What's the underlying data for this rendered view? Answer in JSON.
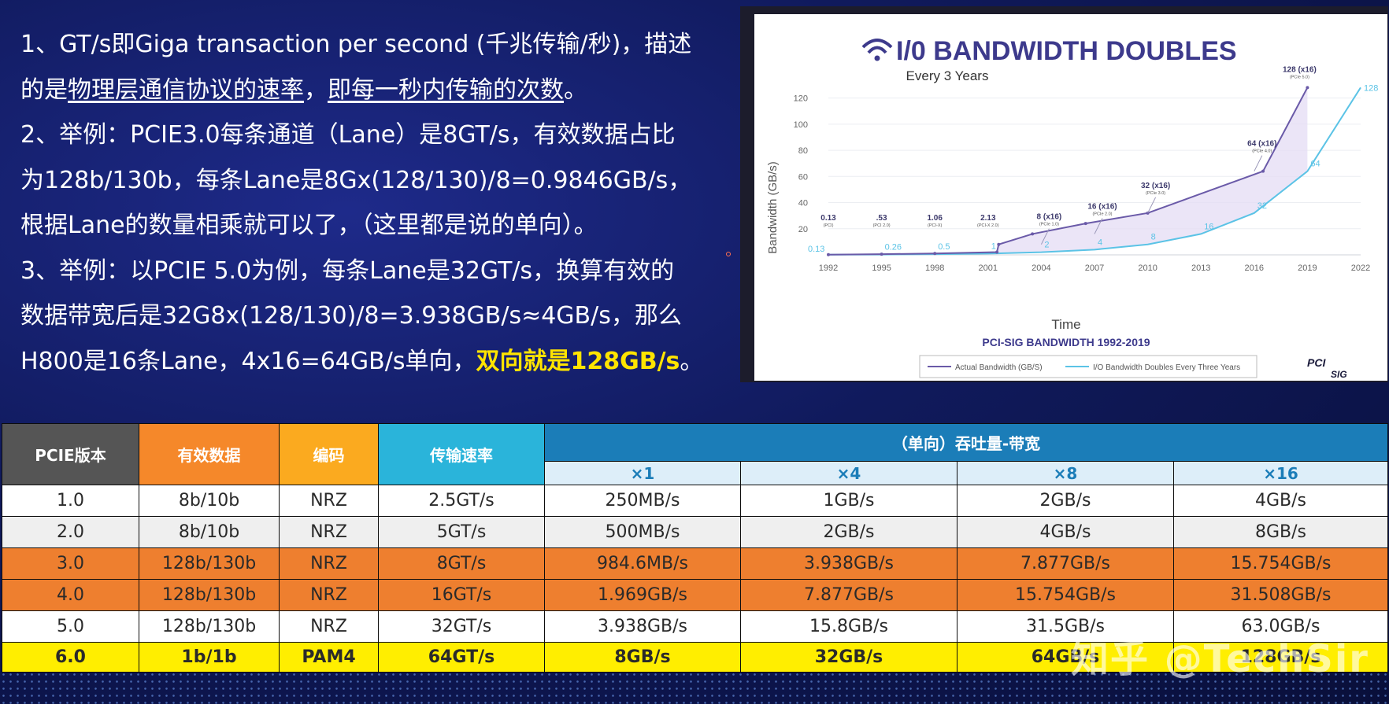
{
  "paragraphs": {
    "p1_a": "1、GT/s即Giga transaction per second (千兆传输/秒)，描述",
    "p1_b_pre": "的是",
    "p1_b_u1": "物理层通信协议的速率",
    "p1_b_mid": "，",
    "p1_b_u2": "即每一秒内传输的次数",
    "p1_b_end": "。",
    "p2_a": "2、举例：PCIE3.0每条通道（Lane）是8GT/s，有效数据占比",
    "p2_b": "为128b/130b，每条Lane是8Gx(128/130)/8=0.9846GB/s，",
    "p2_c": "根据Lane的数量相乘就可以了，（这里都是说的单向）。",
    "p3_a": "3、举例：以PCIE 5.0为例，每条Lane是32GT/s，换算有效的",
    "p3_b": "数据带宽后是32G8x(128/130)/8=3.938GB/s≈4GB/s，那么",
    "p3_c_pre": "H800是16条Lane，4x16=64GB/s单向，",
    "p3_c_hl": "双向就是128GB/s",
    "p3_c_end": "。"
  },
  "chart": {
    "title": "I/0 BANDWIDTH DOUBLES",
    "subtitle": "Every 3 Years",
    "ylabel": "Bandwidth (GB/s)",
    "xlabel": "Time",
    "caption": "PCI-SIG BANDWIDTH 1992-2019",
    "legend_actual": "Actual Bandwidth (GB/S)",
    "legend_doubles": "I/O Bandwidth Doubles Every Three Years",
    "logo_top": "PCI",
    "logo_bottom": "SIG",
    "colors": {
      "actual": "#6a5aa8",
      "doubles": "#5bc3e6",
      "fill": "#e4dcf4",
      "title": "#3d3a8c"
    }
  },
  "chart_data": {
    "type": "line",
    "title": "I/0 BANDWIDTH DOUBLES",
    "subtitle": "Every 3 Years",
    "xlabel": "Time",
    "ylabel": "Bandwidth (GB/s)",
    "x_ticks": [
      "1992",
      "1995",
      "1998",
      "2001",
      "2004",
      "2007",
      "2010",
      "2013",
      "2016",
      "2019",
      "2022"
    ],
    "y_ticks": [
      20,
      40,
      60,
      80,
      100,
      120
    ],
    "ylim": [
      0,
      130
    ],
    "xlim": [
      1992,
      2022
    ],
    "series": [
      {
        "name": "Actual Bandwidth (GB/S)",
        "x": [
          1992,
          1995,
          1998,
          2001.5,
          2001.6,
          2003.5,
          2006.5,
          2010,
          2016.5,
          2019
        ],
        "y": [
          0.13,
          0.53,
          1.06,
          2.13,
          8,
          16,
          24,
          32,
          64,
          128
        ],
        "labels": [
          {
            "x": 1992,
            "y": 0.13,
            "value": "0.13",
            "sub": "(PCI)"
          },
          {
            "x": 1995,
            "y": 0.53,
            "value": ".53",
            "sub": "(PCI 2.0)"
          },
          {
            "x": 1998,
            "y": 1.06,
            "value": "1.06",
            "sub": "(PCI-X)"
          },
          {
            "x": 2001,
            "y": 2.13,
            "value": "2.13",
            "sub": "(PCI-X 2.0)"
          },
          {
            "x": 2004,
            "y": 8,
            "value": "8 (x16)",
            "sub": "(PCIe 1.0)"
          },
          {
            "x": 2007,
            "y": 16,
            "value": "16 (x16)",
            "sub": "(PCIe 2.0)"
          },
          {
            "x": 2010,
            "y": 32,
            "value": "32 (x16)",
            "sub": "(PCIe 3.0)"
          },
          {
            "x": 2016,
            "y": 64,
            "value": "64 (x16)",
            "sub": "(PCIe 4.0)"
          },
          {
            "x": 2019,
            "y": 128,
            "value": "128 (x16)",
            "sub": "(PCIe 5.0)"
          }
        ]
      },
      {
        "name": "I/O Bandwidth Doubles Every Three Years",
        "x": [
          1992,
          1995,
          1998,
          2001,
          2004,
          2007,
          2010,
          2013,
          2016,
          2019,
          2022
        ],
        "y": [
          0.13,
          0.26,
          0.5,
          1,
          2,
          4,
          8,
          16,
          32,
          64,
          128
        ],
        "labels": [
          "0.13",
          "0.26",
          "0.5",
          "1",
          "2",
          "4",
          "8",
          "16",
          "32",
          "64",
          "128"
        ]
      }
    ]
  },
  "table": {
    "headers": {
      "version": "PCIE版本",
      "effective": "有效数据",
      "encoding": "编码",
      "rate": "传输速率",
      "bandwidth": "（单向）吞吐量-带宽",
      "x1": "×1",
      "x4": "×4",
      "x8": "×8",
      "x16": "×16"
    },
    "rows": [
      [
        "1.0",
        "8b/10b",
        "NRZ",
        "2.5GT/s",
        "250MB/s",
        "1GB/s",
        "2GB/s",
        "4GB/s"
      ],
      [
        "2.0",
        "8b/10b",
        "NRZ",
        "5GT/s",
        "500MB/s",
        "2GB/s",
        "4GB/s",
        "8GB/s"
      ],
      [
        "3.0",
        "128b/130b",
        "NRZ",
        "8GT/s",
        "984.6MB/s",
        "3.938GB/s",
        "7.877GB/s",
        "15.754GB/s"
      ],
      [
        "4.0",
        "128b/130b",
        "NRZ",
        "16GT/s",
        "1.969GB/s",
        "7.877GB/s",
        "15.754GB/s",
        "31.508GB/s"
      ],
      [
        "5.0",
        "128b/130b",
        "NRZ",
        "32GT/s",
        "3.938GB/s",
        "15.8GB/s",
        "31.5GB/s",
        "63.0GB/s"
      ],
      [
        "6.0",
        "1b/1b",
        "PAM4",
        "64GT/s",
        "8GB/s",
        "32GB/s",
        "64GB/s",
        "128GB/s"
      ]
    ]
  },
  "watermark": "知乎 @TechSir"
}
